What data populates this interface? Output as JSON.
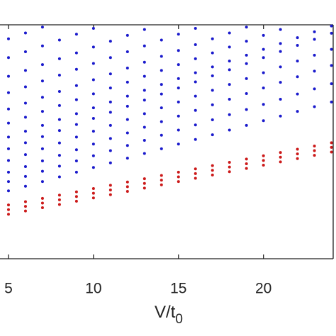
{
  "chart_data": {
    "type": "scatter",
    "xlabel": {
      "base": "V/t",
      "sub": "0"
    },
    "xlim": [
      4.5,
      24.1
    ],
    "xticks": [
      5,
      10,
      15,
      20
    ],
    "ylim": [
      0,
      100
    ],
    "x": [
      5,
      6,
      7,
      8,
      9,
      10,
      11,
      12,
      13,
      14,
      15,
      16,
      17,
      18,
      19,
      20,
      21,
      22,
      23,
      24
    ],
    "series": [
      {
        "color": "#cc1a1a",
        "values": [
          19,
          20.4,
          21.8,
          23.2,
          24.6,
          26,
          27.4,
          28.8,
          30.2,
          31.6,
          33,
          34.4,
          35.8,
          37.2,
          38.6,
          40,
          41.4,
          42.8,
          44.2,
          45.6
        ]
      },
      {
        "color": "#cc1a1a",
        "values": [
          21,
          22.4,
          23.8,
          25.2,
          26.6,
          28,
          29.4,
          30.8,
          32.2,
          33.6,
          35,
          36.4,
          37.8,
          39.2,
          40.6,
          42,
          43.4,
          44.8,
          46.2,
          47.6
        ]
      },
      {
        "color": "#cc1a1a",
        "values": [
          23,
          24.4,
          25.8,
          27.2,
          28.6,
          30,
          31.4,
          32.8,
          34.2,
          35.6,
          37,
          38.4,
          39.8,
          41.2,
          42.6,
          44,
          45.4,
          46.8,
          48.2,
          49.6
        ]
      },
      {
        "color": "#1a1acc",
        "values": [
          29,
          31,
          33,
          35,
          37,
          39,
          41,
          43,
          45,
          47,
          49,
          51,
          53,
          55,
          57,
          59,
          61,
          63,
          65,
          67
        ]
      },
      {
        "color": "#1a1acc",
        "values": [
          33,
          35.2,
          37.4,
          39.6,
          41.8,
          44,
          46.2,
          48.4,
          50.6,
          52.8,
          55,
          57.2,
          59.4,
          61.6,
          63.8,
          66,
          68.2,
          70.4,
          72.6,
          74.8
        ]
      },
      {
        "color": "#1a1acc",
        "values": [
          37,
          39.4,
          41.8,
          44.2,
          46.6,
          49,
          51.4,
          53.8,
          56.2,
          58.6,
          61,
          63.4,
          65.8,
          68.2,
          70.6,
          73,
          75.4,
          77.8,
          80.2,
          82.6
        ]
      },
      {
        "color": "#1a1acc",
        "values": [
          42,
          44.5,
          47,
          49.5,
          52,
          54.5,
          57,
          59.5,
          62,
          64.5,
          67,
          69.5,
          72,
          74.5,
          77,
          79.5,
          82,
          84.5,
          87,
          89.5
        ]
      },
      {
        "color": "#1a1acc",
        "values": [
          47,
          49.6,
          52.2,
          54.8,
          57.4,
          60,
          62.6,
          65.2,
          67.8,
          70.4,
          73,
          75.6,
          78.2,
          80.8,
          83.4,
          86,
          88.6,
          91.2,
          93.8,
          96.4
        ]
      },
      {
        "color": "#1a1acc",
        "values": [
          52,
          54.5,
          57,
          59.5,
          62,
          64.5,
          67,
          69.5,
          72,
          74.5,
          77,
          79.5,
          82,
          84.5,
          87,
          89.5,
          92,
          94.5,
          97,
          99.5
        ]
      },
      {
        "color": "#1a1acc",
        "values": [
          58,
          60.5,
          63,
          65.5,
          68,
          70.5,
          73,
          75.5,
          78,
          80.5,
          83,
          85.5,
          88,
          90.5,
          93,
          95.5,
          98,
          null,
          null,
          null
        ]
      },
      {
        "color": "#1a1acc",
        "values": [
          64,
          66.5,
          69,
          71.5,
          74,
          76.5,
          79,
          81.5,
          84,
          86.5,
          89,
          91.5,
          94,
          96.5,
          99,
          null,
          null,
          null,
          null,
          null
        ]
      },
      {
        "color": "#1a1acc",
        "values": [
          71,
          73.5,
          76,
          78.5,
          81,
          83.5,
          86,
          88.5,
          91,
          93.5,
          96,
          98.5,
          null,
          null,
          null,
          null,
          null,
          null,
          null,
          null
        ]
      },
      {
        "color": "#1a1acc",
        "values": [
          78,
          80.5,
          83,
          85.5,
          88,
          90.5,
          93,
          95.5,
          98,
          null,
          null,
          null,
          null,
          null,
          null,
          null,
          null,
          null,
          null,
          null
        ]
      },
      {
        "color": "#1a1acc",
        "values": [
          86,
          88.5,
          91,
          93.5,
          96,
          98.5,
          null,
          null,
          null,
          null,
          null,
          null,
          null,
          null,
          null,
          null,
          null,
          null,
          null,
          null
        ]
      },
      {
        "color": "#1a1acc",
        "values": [
          94,
          96.5,
          99,
          null,
          null,
          null,
          null,
          null,
          null,
          null,
          null,
          null,
          null,
          null,
          null,
          null,
          null,
          null,
          null,
          null
        ]
      }
    ]
  }
}
